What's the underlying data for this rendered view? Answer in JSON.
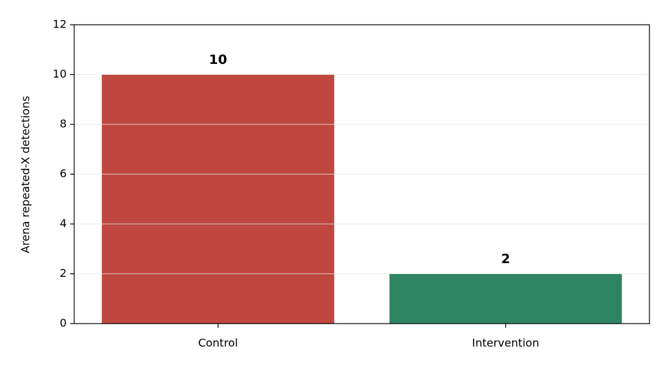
{
  "chart_data": {
    "type": "bar",
    "categories": [
      "Control",
      "Intervention"
    ],
    "values": [
      10,
      2
    ],
    "colors": [
      "#c0473f",
      "#2e8462"
    ],
    "ylabel": "Arena repeated-X detections",
    "ylim": [
      0,
      12
    ],
    "yticks": [
      0,
      2,
      4,
      6,
      8,
      10,
      12
    ],
    "grid": true
  }
}
